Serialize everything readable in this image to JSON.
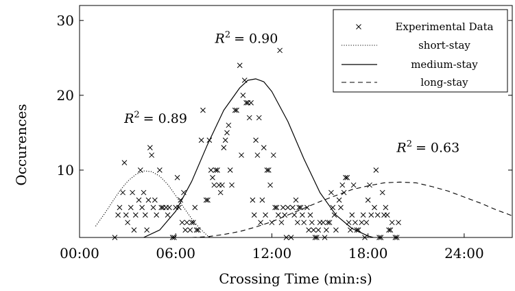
{
  "chart_data": {
    "type": "scatter",
    "xlabel": "Crossing Time (min:s)",
    "ylabel": "Occurences",
    "xlim": [
      0,
      1620
    ],
    "ylim": [
      1,
      32
    ],
    "x_ticks": [
      {
        "value": 0,
        "label": "00:00"
      },
      {
        "value": 360,
        "label": "06:00"
      },
      {
        "value": 720,
        "label": "12:00"
      },
      {
        "value": 1080,
        "label": "18:00"
      },
      {
        "value": 1440,
        "label": "24:00"
      }
    ],
    "y_ticks": [
      {
        "value": 10,
        "label": "10"
      },
      {
        "value": 20,
        "label": "20"
      },
      {
        "value": 30,
        "label": "30"
      }
    ],
    "legend": {
      "position": "top-right",
      "entries": [
        "Experimental Data",
        "short-stay",
        "medium-stay",
        "long-stay"
      ]
    },
    "annotations": [
      {
        "label": "R",
        "sup": "2",
        "value": "= 0.89",
        "x": 285,
        "y": 16.3
      },
      {
        "label": "R",
        "sup": "2",
        "value": "= 0.90",
        "x": 625,
        "y": 27.0
      },
      {
        "label": "R",
        "sup": "2",
        "value": "= 0.63",
        "x": 1305,
        "y": 12.4
      }
    ],
    "series": [
      {
        "name": "Experimental Data",
        "style": "markers-x",
        "points": [
          [
            132,
            1
          ],
          [
            144,
            4
          ],
          [
            150,
            5
          ],
          [
            162,
            7
          ],
          [
            168,
            11
          ],
          [
            174,
            4
          ],
          [
            180,
            3
          ],
          [
            192,
            5
          ],
          [
            198,
            7
          ],
          [
            204,
            2
          ],
          [
            210,
            4
          ],
          [
            222,
            6
          ],
          [
            228,
            10
          ],
          [
            234,
            5
          ],
          [
            240,
            7
          ],
          [
            246,
            4
          ],
          [
            252,
            2
          ],
          [
            258,
            6
          ],
          [
            264,
            13
          ],
          [
            270,
            12
          ],
          [
            276,
            5
          ],
          [
            282,
            6
          ],
          [
            288,
            4
          ],
          [
            300,
            10
          ],
          [
            306,
            5
          ],
          [
            312,
            5
          ],
          [
            324,
            5
          ],
          [
            330,
            4
          ],
          [
            336,
            5
          ],
          [
            348,
            1
          ],
          [
            354,
            1
          ],
          [
            360,
            5
          ],
          [
            366,
            9
          ],
          [
            372,
            5
          ],
          [
            378,
            6
          ],
          [
            384,
            3
          ],
          [
            390,
            7
          ],
          [
            396,
            2
          ],
          [
            402,
            3
          ],
          [
            414,
            2
          ],
          [
            420,
            3
          ],
          [
            426,
            3
          ],
          [
            432,
            5
          ],
          [
            438,
            2
          ],
          [
            444,
            2
          ],
          [
            456,
            14
          ],
          [
            462,
            18
          ],
          [
            474,
            6
          ],
          [
            480,
            6
          ],
          [
            486,
            14
          ],
          [
            492,
            10
          ],
          [
            498,
            9
          ],
          [
            504,
            8
          ],
          [
            510,
            10
          ],
          [
            516,
            10
          ],
          [
            522,
            8
          ],
          [
            528,
            7
          ],
          [
            534,
            8
          ],
          [
            540,
            13
          ],
          [
            546,
            14
          ],
          [
            552,
            15
          ],
          [
            558,
            16
          ],
          [
            564,
            10
          ],
          [
            570,
            8
          ],
          [
            582,
            18
          ],
          [
            588,
            18
          ],
          [
            600,
            24
          ],
          [
            606,
            12
          ],
          [
            612,
            20
          ],
          [
            618,
            22
          ],
          [
            624,
            19
          ],
          [
            630,
            19
          ],
          [
            636,
            17
          ],
          [
            642,
            19
          ],
          [
            648,
            6
          ],
          [
            654,
            4
          ],
          [
            660,
            14
          ],
          [
            666,
            12
          ],
          [
            672,
            17
          ],
          [
            678,
            3
          ],
          [
            684,
            6
          ],
          [
            690,
            13
          ],
          [
            696,
            4
          ],
          [
            702,
            10
          ],
          [
            708,
            10
          ],
          [
            714,
            8
          ],
          [
            720,
            3
          ],
          [
            726,
            12
          ],
          [
            732,
            5
          ],
          [
            738,
            5
          ],
          [
            744,
            4
          ],
          [
            750,
            26
          ],
          [
            756,
            3
          ],
          [
            762,
            5
          ],
          [
            768,
            4
          ],
          [
            774,
            1
          ],
          [
            780,
            5
          ],
          [
            792,
            1
          ],
          [
            798,
            5
          ],
          [
            804,
            4
          ],
          [
            810,
            6
          ],
          [
            816,
            3
          ],
          [
            822,
            5
          ],
          [
            828,
            5
          ],
          [
            834,
            4
          ],
          [
            840,
            3
          ],
          [
            852,
            5
          ],
          [
            858,
            2
          ],
          [
            864,
            4
          ],
          [
            870,
            3
          ],
          [
            876,
            2
          ],
          [
            882,
            1
          ],
          [
            888,
            1
          ],
          [
            894,
            2
          ],
          [
            900,
            3
          ],
          [
            912,
            3
          ],
          [
            918,
            1
          ],
          [
            924,
            2
          ],
          [
            930,
            3
          ],
          [
            936,
            3
          ],
          [
            942,
            7
          ],
          [
            948,
            5
          ],
          [
            954,
            4
          ],
          [
            960,
            2
          ],
          [
            972,
            6
          ],
          [
            978,
            5
          ],
          [
            984,
            8
          ],
          [
            990,
            7
          ],
          [
            996,
            9
          ],
          [
            1002,
            9
          ],
          [
            1008,
            3
          ],
          [
            1014,
            2
          ],
          [
            1020,
            4
          ],
          [
            1026,
            8
          ],
          [
            1032,
            3
          ],
          [
            1038,
            2
          ],
          [
            1044,
            2
          ],
          [
            1056,
            3
          ],
          [
            1062,
            4
          ],
          [
            1068,
            1
          ],
          [
            1074,
            3
          ],
          [
            1080,
            6
          ],
          [
            1086,
            8
          ],
          [
            1092,
            4
          ],
          [
            1104,
            5
          ],
          [
            1110,
            10
          ],
          [
            1116,
            4
          ],
          [
            1122,
            1
          ],
          [
            1128,
            1
          ],
          [
            1134,
            7
          ],
          [
            1140,
            4
          ],
          [
            1146,
            5
          ],
          [
            1152,
            4
          ],
          [
            1158,
            2
          ],
          [
            1164,
            2
          ],
          [
            1170,
            3
          ],
          [
            1182,
            1
          ],
          [
            1188,
            1
          ],
          [
            1194,
            3
          ]
        ]
      },
      {
        "name": "short-stay",
        "style": "dotted",
        "points": [
          [
            60,
            2.5
          ],
          [
            90,
            4
          ],
          [
            120,
            5.6
          ],
          [
            150,
            7.2
          ],
          [
            180,
            8.5
          ],
          [
            210,
            9.4
          ],
          [
            240,
            9.9
          ],
          [
            270,
            9.8
          ],
          [
            300,
            9.2
          ],
          [
            330,
            8.1
          ],
          [
            360,
            6.6
          ],
          [
            390,
            5.0
          ],
          [
            420,
            3.5
          ],
          [
            450,
            2.2
          ],
          [
            480,
            1.2
          ],
          [
            510,
            0.5
          ],
          [
            540,
            0.1
          ]
        ]
      },
      {
        "name": "medium-stay",
        "style": "solid",
        "points": [
          [
            240,
            1
          ],
          [
            300,
            2
          ],
          [
            360,
            4.5
          ],
          [
            420,
            8.5
          ],
          [
            480,
            13.5
          ],
          [
            540,
            18
          ],
          [
            600,
            21
          ],
          [
            630,
            22
          ],
          [
            660,
            22.2
          ],
          [
            690,
            21.8
          ],
          [
            720,
            20.5
          ],
          [
            780,
            16.5
          ],
          [
            840,
            11.5
          ],
          [
            900,
            7
          ],
          [
            960,
            4
          ],
          [
            1020,
            2.2
          ],
          [
            1080,
            1.2
          ],
          [
            1140,
            0.6
          ],
          [
            1200,
            0.3
          ]
        ]
      },
      {
        "name": "long-stay",
        "style": "dashed",
        "points": [
          [
            420,
            1
          ],
          [
            480,
            1.1
          ],
          [
            540,
            1.4
          ],
          [
            600,
            1.8
          ],
          [
            660,
            2.4
          ],
          [
            720,
            3.1
          ],
          [
            780,
            4.0
          ],
          [
            840,
            4.9
          ],
          [
            900,
            5.8
          ],
          [
            960,
            6.6
          ],
          [
            1020,
            7.4
          ],
          [
            1080,
            7.9
          ],
          [
            1140,
            8.3
          ],
          [
            1200,
            8.4
          ],
          [
            1260,
            8.3
          ],
          [
            1320,
            7.8
          ],
          [
            1380,
            7.2
          ],
          [
            1440,
            6.4
          ],
          [
            1500,
            5.6
          ],
          [
            1560,
            4.7
          ],
          [
            1620,
            3.9
          ]
        ]
      }
    ]
  }
}
